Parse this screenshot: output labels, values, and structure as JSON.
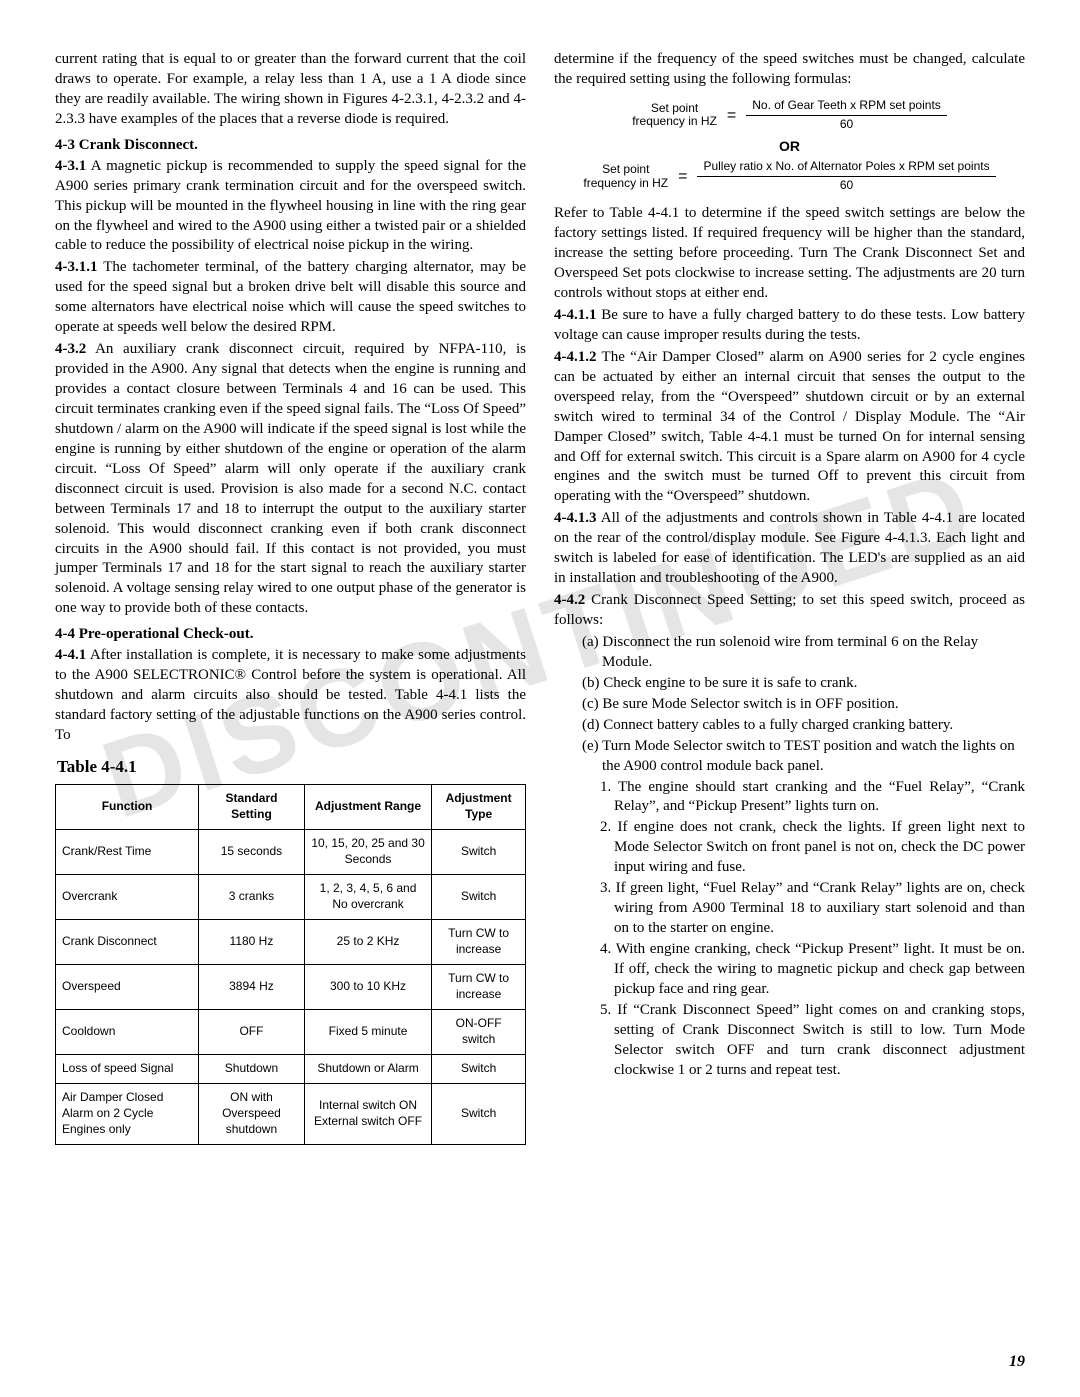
{
  "watermark": "DISCONTINUED",
  "page_number": "19",
  "left": {
    "p0": "current rating that is equal to or greater than the forward current that the coil draws to operate. For example, a relay less than 1 A, use a 1 A diode since they are readily available. The wiring shown in Figures 4-2.3.1, 4-2.3.2 and 4-2.3.3 have examples of the places that a reverse diode is required.",
    "h43": "4-3  Crank Disconnect.",
    "n431": "4-3.1",
    "p431": "  A magnetic pickup is recommended to supply the speed signal for the A900 series primary crank termination circuit and for the overspeed switch.  This pickup will be mounted in the flywheel housing in line with the ring gear on the flywheel and wired to the A900 using either a twisted pair or a shielded cable to reduce the possibility of electrical noise pickup in the wiring.",
    "n4311": "4-3.1.1",
    "p4311": "  The tachometer terminal, of the battery charging alternator, may be used for the speed signal but a broken drive belt will disable this source and some alternators have electrical noise which will cause the speed switches to operate at speeds well below the desired RPM.",
    "n432": "4-3.2",
    "p432": "  An auxiliary crank disconnect circuit, required by NFPA-110, is provided in the A900.  Any signal that detects when the engine is running and provides a contact closure between Terminals 4 and 16 can be used.  This circuit terminates cranking even if the speed signal fails.  The “Loss Of Speed” shutdown / alarm on the A900 will indicate if the speed signal is lost while the engine is running by either shutdown of the engine or operation of the alarm circuit.  “Loss Of Speed” alarm will only operate if the auxiliary crank disconnect circuit is used.  Provision is also made for a second N.C. contact between Terminals 17 and 18 to interrupt the output to the auxiliary starter solenoid.  This would disconnect cranking even if both crank disconnect circuits in the A900 should fail.  If this contact is not provided, you must jumper Terminals 17 and 18 for the start signal to reach the auxiliary starter solenoid.  A voltage sensing relay wired to one output phase of the generator is one way to provide both of these contacts.",
    "h44": "4-4  Pre-operational Check-out.",
    "n441": "4-4.1",
    "p441": "  After installation is complete, it is necessary to make some adjustments to the A900 SELECTRONIC® Control before the system is operational.  All shutdown and alarm circuits also should be tested.  Table 4-4.1 lists the standard factory setting of the adjustable functions on the A900 series control.  To"
  },
  "table": {
    "title": "Table 4-4.1",
    "head": {
      "c0": "Function",
      "c1": "Standard Setting",
      "c2": "Adjustment Range",
      "c3": "Adjustment Type"
    },
    "rows": [
      {
        "c0": "Crank/Rest Time",
        "c1": "15 seconds",
        "c2": "10, 15, 20, 25 and 30 Seconds",
        "c3": "Switch"
      },
      {
        "c0": "Overcrank",
        "c1": "3 cranks",
        "c2": "1, 2, 3, 4, 5, 6 and No overcrank",
        "c3": "Switch"
      },
      {
        "c0": "Crank Disconnect",
        "c1": "1180 Hz",
        "c2": "25 to 2 KHz",
        "c3": "Turn CW to increase"
      },
      {
        "c0": "Overspeed",
        "c1": "3894 Hz",
        "c2": "300 to 10 KHz",
        "c3": "Turn CW to increase"
      },
      {
        "c0": "Cooldown",
        "c1": "OFF",
        "c2": "Fixed 5 minute",
        "c3": "ON-OFF switch"
      },
      {
        "c0": "Loss of speed Signal",
        "c1": "Shutdown",
        "c2": "Shutdown or Alarm",
        "c3": "Switch"
      },
      {
        "c0": "Air Damper Closed Alarm on 2 Cycle Engines only",
        "c1": "ON with Overspeed shutdown",
        "c2": "Internal switch ON External switch OFF",
        "c3": "Switch"
      }
    ]
  },
  "right": {
    "p0": "determine if the frequency of the speed switches must be changed, calculate the required setting using the following formulas:",
    "formula": {
      "lbl1a": "Set point",
      "lbl1b": "frequency in HZ",
      "f1top": "No. of Gear Teeth x RPM set points",
      "f1bot": "60",
      "or": "OR",
      "f2top": "Pulley ratio x No. of Alternator Poles x RPM set points",
      "f2bot": "60"
    },
    "p1": "Refer to Table 4-4.1 to determine if the speed switch settings are below the factory settings listed.  If required frequency will be higher than the standard, increase the setting before proceeding.  Turn The Crank Disconnect Set and Overspeed Set pots clockwise to increase setting.  The adjustments are 20 turn controls without stops at either end.",
    "n4411": "4-4.1.1",
    "p4411": "  Be sure to have a fully charged battery to do these tests.  Low battery voltage can cause improper results during the tests.",
    "n4412": "4-4.1.2",
    "p4412": "  The “Air Damper Closed” alarm on A900 series for 2 cycle engines can be actuated by either an internal circuit that senses the output to the overspeed relay, from the “Overspeed” shutdown circuit or by an external switch wired to terminal 34 of the Control / Display Module.  The “Air Damper Closed” switch, Table 4-4.1 must be turned On for internal sensing and Off for external switch.  This circuit is a Spare alarm on A900 for 4 cycle engines and the switch must be turned Off to prevent this circuit from operating with the “Overspeed” shutdown.",
    "n4413": "4-4.1.3",
    "p4413": "  All of the adjustments and controls shown in Table 4-4.1 are located on the rear of the control/display module. See Figure 4-4.1.3. Each light and switch is labeled for ease of identification. The LED's are supplied as an aid in installation and troubleshooting of the A900.",
    "n442": "4-4.2",
    "p442": "  Crank Disconnect Speed Setting;  to set this speed switch, proceed as follows:",
    "steps": {
      "a": "(a)  Disconnect the run solenoid wire from terminal 6 on the Relay Module.",
      "b": "(b)  Check engine to be sure it is safe to crank.",
      "c": "(c)  Be sure Mode Selector switch is in OFF position.",
      "d": "(d)  Connect battery cables to a fully charged cranking battery.",
      "e": "(e)  Turn Mode Selector switch to TEST position and watch the lights on the A900 control module back panel."
    },
    "nums": {
      "1": "1. The engine should start cranking and the “Fuel Relay”, “Crank Relay”, and “Pickup Present” lights turn on.",
      "2": "2. If engine does not crank, check the lights.  If green light next to Mode Selector Switch on front panel is not on, check the DC power input wiring and fuse.",
      "3": "3. If green light, “Fuel Relay” and “Crank Relay” lights are on, check wiring from A900 Terminal 18 to auxiliary start solenoid and than on to the starter on engine.",
      "4": "4. With engine cranking, check “Pickup Present” light.  It must be on.  If off, check the wiring to magnetic pickup and check gap between pickup face and ring gear.",
      "5": "5. If “Crank Disconnect Speed” light comes on and cranking stops, setting of Crank Disconnect Switch is still to low. Turn Mode Selector switch OFF and turn crank disconnect adjustment clockwise 1 or 2 turns and repeat test."
    }
  }
}
